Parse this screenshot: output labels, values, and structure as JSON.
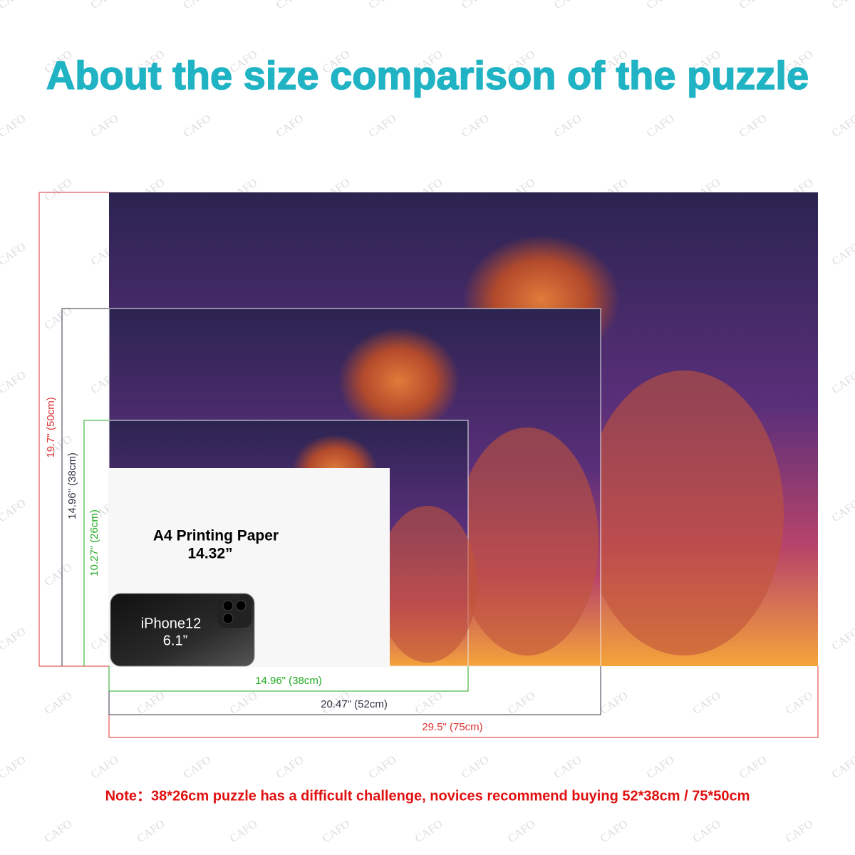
{
  "watermark": "CAFO",
  "title": "About the size comparison of the puzzle",
  "heights": [
    "19.7\" (50cm)",
    "14.96\" (38cm)",
    "10.27\" (26cm)"
  ],
  "widths": [
    "14.96\" (38cm)",
    "20.47\" (52cm)",
    "29.5\" (75cm)"
  ],
  "paper": {
    "name": "A4 Printing Paper",
    "size": "14.32”"
  },
  "phone": {
    "name": "iPhone12",
    "size": "6.1”"
  },
  "note": "Note：38*26cm puzzle has a difficult challenge, novices recommend buying 52*38cm / 75*50cm"
}
